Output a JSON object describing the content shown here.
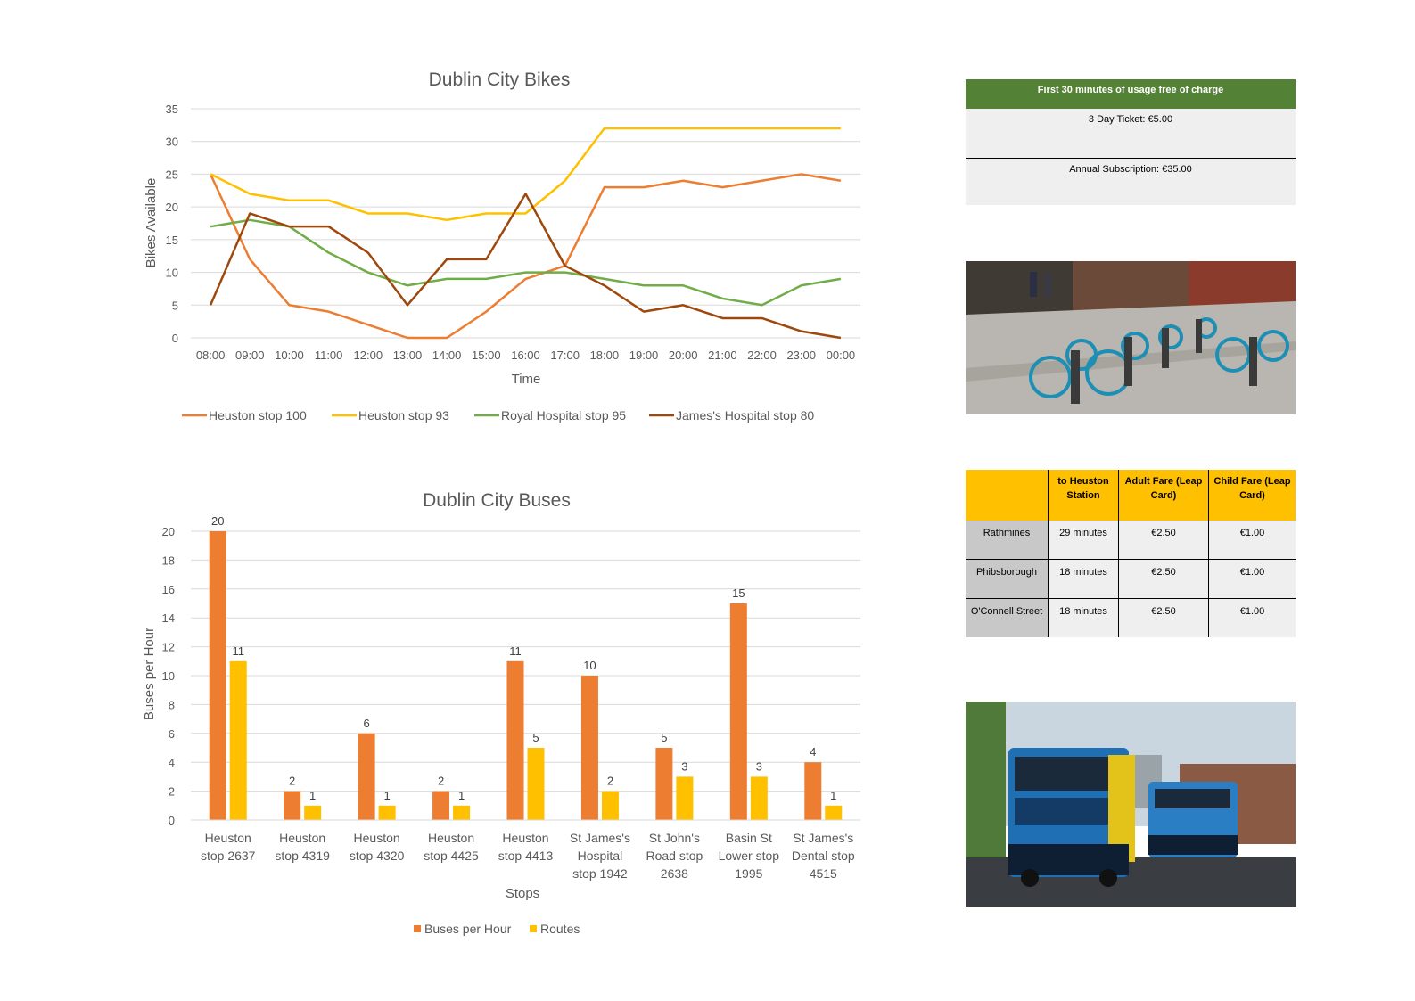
{
  "chart_data": [
    {
      "type": "line",
      "title": "Dublin City Bikes",
      "xlabel": "Time",
      "ylabel": "Bikes Available",
      "ylim": [
        0,
        35
      ],
      "yticks": [
        "0",
        "5",
        "10",
        "15",
        "20",
        "25",
        "30",
        "35"
      ],
      "grid": true,
      "legend": "bottom",
      "categories": [
        "08:00",
        "09:00",
        "10:00",
        "11:00",
        "12:00",
        "13:00",
        "14:00",
        "15:00",
        "16:00",
        "17:00",
        "18:00",
        "19:00",
        "20:00",
        "21:00",
        "22:00",
        "23:00",
        "00:00"
      ],
      "series": [
        {
          "name": "Heuston stop 100",
          "color": "#ed7d31",
          "values": [
            25,
            12,
            5,
            4,
            2,
            0,
            0,
            4,
            9,
            11,
            23,
            23,
            24,
            23,
            24,
            25,
            24
          ]
        },
        {
          "name": "Heuston stop 93",
          "color": "#ffc000",
          "values": [
            25,
            22,
            21,
            21,
            19,
            19,
            18,
            19,
            19,
            24,
            32,
            32,
            32,
            32,
            32,
            32,
            32
          ]
        },
        {
          "name": "Royal Hospital stop 95",
          "color": "#70ad47",
          "values": [
            17,
            18,
            17,
            13,
            10,
            8,
            9,
            9,
            10,
            10,
            9,
            8,
            8,
            6,
            5,
            8,
            9
          ]
        },
        {
          "name": "James's Hospital stop 80",
          "color": "#9e480e",
          "values": [
            5,
            19,
            17,
            17,
            13,
            5,
            12,
            12,
            22,
            11,
            8,
            4,
            5,
            3,
            3,
            1,
            0
          ]
        }
      ]
    },
    {
      "type": "bar",
      "title": "Dublin City Buses",
      "xlabel": "Stops",
      "ylabel": "Buses per Hour",
      "ylim": [
        0,
        20
      ],
      "yticks": [
        "0",
        "2",
        "4",
        "6",
        "8",
        "10",
        "12",
        "14",
        "16",
        "18",
        "20"
      ],
      "grid": true,
      "legend": "bottom",
      "categories": [
        [
          "Heuston",
          "stop 2637"
        ],
        [
          "Heuston",
          "stop 4319"
        ],
        [
          "Heuston",
          "stop 4320"
        ],
        [
          "Heuston",
          "stop 4425"
        ],
        [
          "Heuston",
          "stop 4413"
        ],
        [
          "St James's",
          "Hospital",
          "stop 1942"
        ],
        [
          "St John's",
          "Road stop",
          "2638"
        ],
        [
          "Basin St",
          "Lower stop",
          "1995"
        ],
        [
          "St James's",
          "Dental stop",
          "4515"
        ]
      ],
      "series": [
        {
          "name": "Buses per Hour",
          "color": "#ed7d31",
          "values": [
            20,
            2,
            6,
            2,
            11,
            10,
            5,
            15,
            4
          ]
        },
        {
          "name": "Routes",
          "color": "#ffc000",
          "values": [
            11,
            1,
            1,
            1,
            5,
            2,
            3,
            3,
            1
          ]
        }
      ]
    }
  ],
  "bike_pricing": {
    "header": "First 30 minutes of usage free of charge",
    "rows": [
      "3 Day Ticket: €5.00",
      "Annual Subscription: €35.00"
    ]
  },
  "bus_fares": {
    "columns": [
      "",
      "to Heuston Station",
      "Adult Fare (Leap Card)",
      "Child Fare (Leap Card)"
    ],
    "rows": [
      {
        "place": "Rathmines",
        "time": "29 minutes",
        "adult": "€2.50",
        "child": "€1.00"
      },
      {
        "place": "Phibsborough",
        "time": "18 minutes",
        "adult": "€2.50",
        "child": "€1.00"
      },
      {
        "place": "O'Connell Street",
        "time": "18 minutes",
        "adult": "€2.50",
        "child": "€1.00"
      }
    ]
  }
}
